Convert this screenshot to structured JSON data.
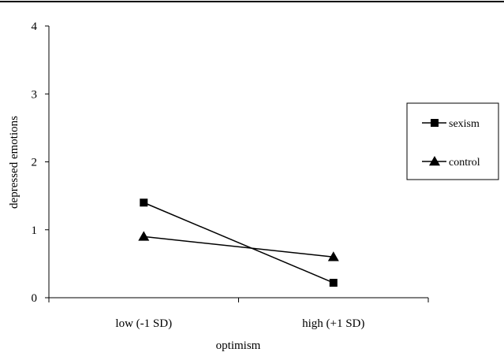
{
  "chart_data": {
    "type": "line",
    "title": "",
    "xlabel": "optimism",
    "ylabel": "depressed emotions",
    "categories": [
      "low (-1 SD)",
      "high (+1 SD)"
    ],
    "ylim": [
      0,
      4
    ],
    "yticks": [
      0,
      1,
      2,
      3,
      4
    ],
    "grid": false,
    "legend_position": "right",
    "series": [
      {
        "name": "sexism",
        "marker": "square",
        "values": [
          1.4,
          0.22
        ]
      },
      {
        "name": "control",
        "marker": "triangle",
        "values": [
          0.9,
          0.6
        ]
      }
    ]
  },
  "colors": {
    "line": "#000000",
    "background": "#ffffff"
  }
}
